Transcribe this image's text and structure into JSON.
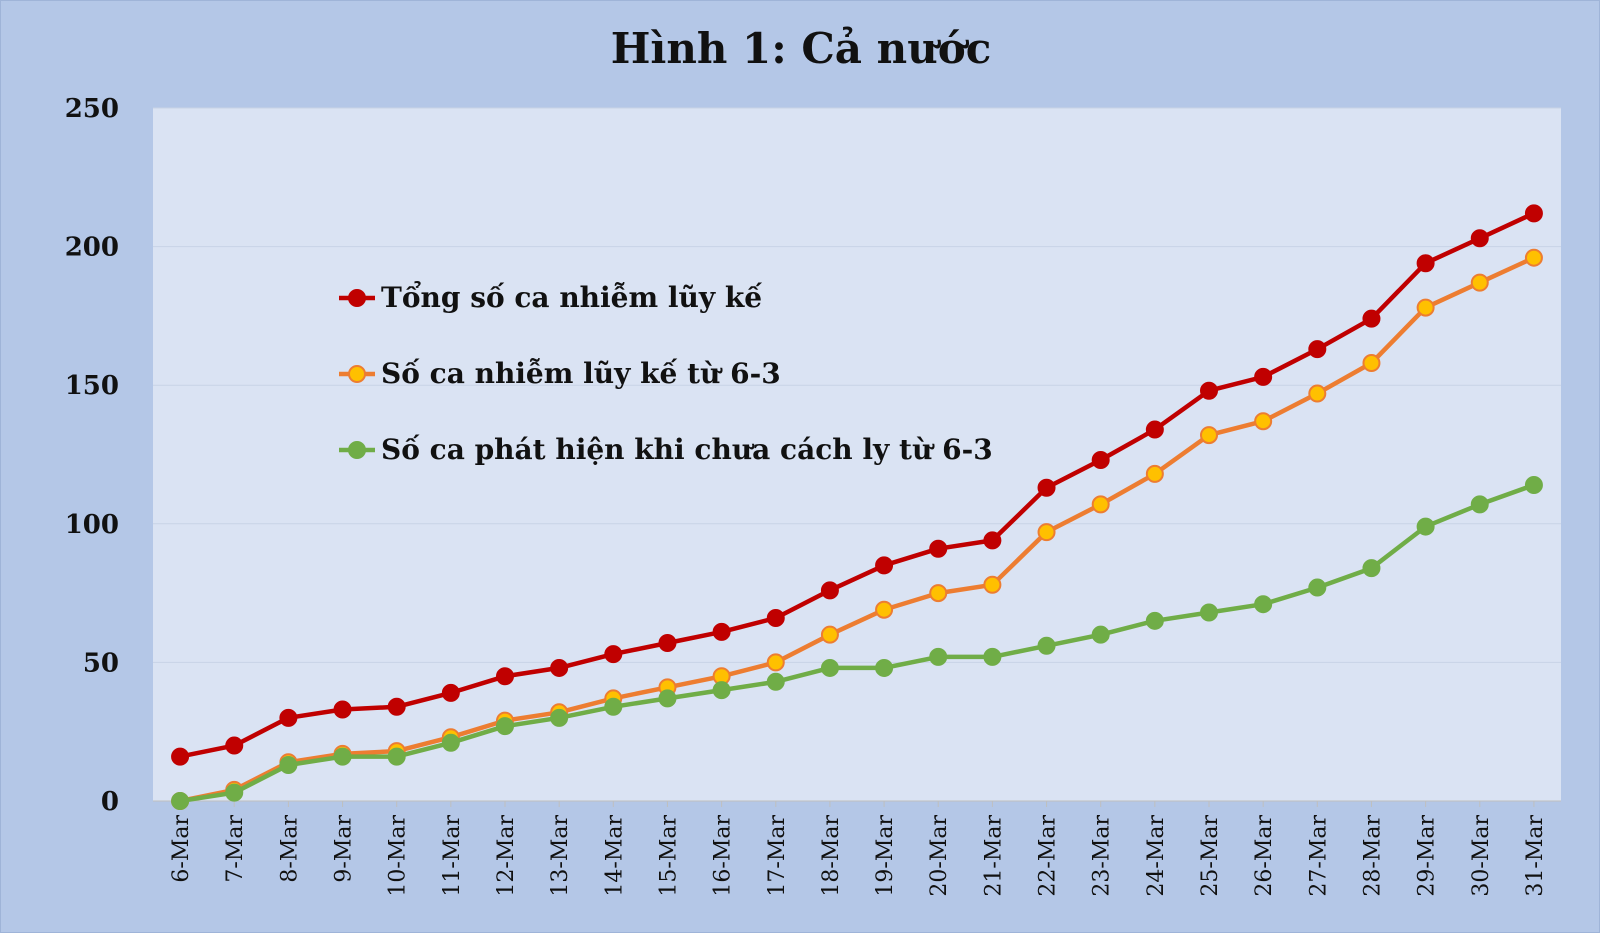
{
  "chart_data": {
    "type": "line",
    "title": "Hình 1: Cả nước",
    "xlabel": "",
    "ylabel": "",
    "ylim": [
      0,
      250
    ],
    "yticks": [
      0,
      50,
      100,
      150,
      200,
      250
    ],
    "grid": true,
    "legend_position": "upper-left",
    "categories": [
      "6-Mar",
      "7-Mar",
      "8-Mar",
      "9-Mar",
      "10-Mar",
      "11-Mar",
      "12-Mar",
      "13-Mar",
      "14-Mar",
      "15-Mar",
      "16-Mar",
      "17-Mar",
      "18-Mar",
      "19-Mar",
      "20-Mar",
      "21-Mar",
      "22-Mar",
      "23-Mar",
      "24-Mar",
      "25-Mar",
      "26-Mar",
      "27-Mar",
      "28-Mar",
      "29-Mar",
      "30-Mar",
      "31-Mar"
    ],
    "series": [
      {
        "name": "Tổng số ca nhiễm lũy kế",
        "color": "#c00000",
        "marker_color": "#c00000",
        "values": [
          16,
          20,
          30,
          33,
          34,
          39,
          45,
          48,
          53,
          57,
          61,
          66,
          76,
          85,
          91,
          94,
          113,
          123,
          134,
          148,
          153,
          163,
          174,
          194,
          203,
          212
        ]
      },
      {
        "name": "Số ca nhiễm lũy kế từ 6-3",
        "color": "#ed7d31",
        "marker_color": "#ffc000",
        "values": [
          0,
          4,
          14,
          17,
          18,
          23,
          29,
          32,
          37,
          41,
          45,
          50,
          60,
          69,
          75,
          78,
          97,
          107,
          118,
          132,
          137,
          147,
          158,
          178,
          187,
          196
        ]
      },
      {
        "name": "Số ca phát hiện khi chưa cách ly từ 6-3",
        "color": "#70ad47",
        "marker_color": "#70ad47",
        "values": [
          0,
          3,
          13,
          16,
          16,
          21,
          27,
          30,
          34,
          37,
          40,
          43,
          48,
          48,
          52,
          52,
          56,
          60,
          65,
          68,
          71,
          77,
          84,
          99,
          107,
          114
        ]
      }
    ]
  }
}
